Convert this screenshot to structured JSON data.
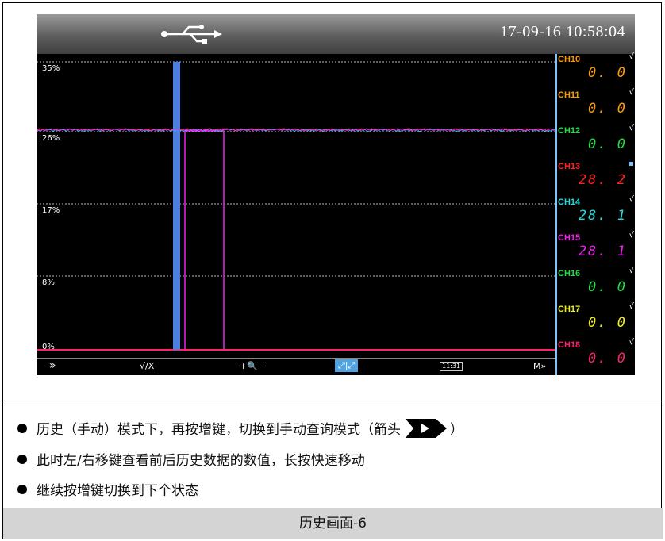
{
  "header": {
    "usb_icon": "usb-icon",
    "datetime": "17-09-16  10:58:04"
  },
  "y_axis": {
    "labels": [
      "35%",
      "26%",
      "17%",
      "8%",
      "0%"
    ]
  },
  "channels": [
    {
      "name": "CH10",
      "value": "0. 0",
      "name_color": "#ff9a00",
      "value_color": "#ff9a00",
      "mark": "√"
    },
    {
      "name": "CH11",
      "value": "0. 0",
      "name_color": "#ff9a00",
      "value_color": "#ff9a00",
      "mark": "√"
    },
    {
      "name": "CH12",
      "value": "0. 0",
      "name_color": "#22dd44",
      "value_color": "#22dd44",
      "mark": "√"
    },
    {
      "name": "CH13",
      "value": "28. 2",
      "name_color": "#ff2222",
      "value_color": "#ff2222",
      "mark": ""
    },
    {
      "name": "CH14",
      "value": "28. 1",
      "name_color": "#22dddd",
      "value_color": "#22dddd",
      "mark": "√"
    },
    {
      "name": "CH15",
      "value": "28. 1",
      "name_color": "#ee22ee",
      "value_color": "#ee22ee",
      "mark": "√"
    },
    {
      "name": "CH16",
      "value": "0. 0",
      "name_color": "#22dd44",
      "value_color": "#22dd44",
      "mark": "√"
    },
    {
      "name": "CH17",
      "value": "0. 0",
      "name_color": "#eeee22",
      "value_color": "#eeee22",
      "mark": "√"
    },
    {
      "name": "CH18",
      "value": "0. 0",
      "name_color": "#ff2266",
      "value_color": "#ff2266",
      "mark": "√"
    }
  ],
  "toolbar": {
    "fast_forward": "»",
    "check_toggle": "√/X",
    "zoom": "+🔍−",
    "cursor_mode": "⤢|⤢",
    "time_box": "11:31",
    "more": "M»"
  },
  "bullets": [
    {
      "pre": "历史（手动）模式下，再按增键，切换到手动查询模式（箭头",
      "post": "）"
    },
    {
      "pre": "此时左/右移键查看前后历史数据的数值，长按快速移动",
      "post": ""
    },
    {
      "pre": "继续按增键切换到下个状态",
      "post": ""
    }
  ],
  "caption": "历史画面-6",
  "colors": {
    "cursor_bar": "#4a7fe0",
    "trace_cyan": "#22bbee",
    "trace_magenta": "#ee22ee",
    "trace_red": "#ff2244"
  }
}
